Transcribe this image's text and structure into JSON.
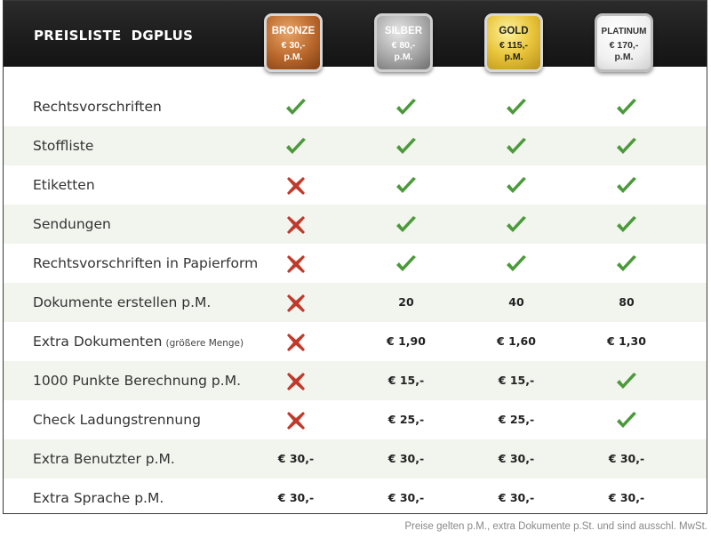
{
  "header": {
    "title": "PREISLISTE  DGPLUS"
  },
  "plans": [
    {
      "name": "BRONZE",
      "price": "€ 30,-\np.M.",
      "color": "#b9672b"
    },
    {
      "name": "SILBER",
      "price": "€ 80,-\np.M.",
      "color": "#a8a8a8"
    },
    {
      "name": "GOLD",
      "price": "€ 115,-\np.M.",
      "color": "#e8c43a"
    },
    {
      "name": "PLATINUM",
      "price": "€ 170,-\np.M.",
      "color": "#f0f0f0"
    }
  ],
  "status_colors": {
    "check": "#4a9a3a",
    "cross": "#c0392b"
  },
  "rows": [
    {
      "label": "Rechtsvorschriften",
      "note": "",
      "values": [
        "check",
        "check",
        "check",
        "check"
      ]
    },
    {
      "label": "Stoffliste",
      "note": "",
      "values": [
        "check",
        "check",
        "check",
        "check"
      ]
    },
    {
      "label": "Etiketten",
      "note": "",
      "values": [
        "cross",
        "check",
        "check",
        "check"
      ]
    },
    {
      "label": "Sendungen",
      "note": "",
      "values": [
        "cross",
        "check",
        "check",
        "check"
      ]
    },
    {
      "label": "Rechtsvorschriften in Papierform",
      "note": "",
      "values": [
        "cross",
        "check",
        "check",
        "check"
      ]
    },
    {
      "label": "Dokumente erstellen p.M.",
      "note": "",
      "values": [
        "cross",
        "20",
        "40",
        "80"
      ]
    },
    {
      "label": "Extra Dokumenten",
      "note": "(größere Menge)",
      "values": [
        "cross",
        "€ 1,90",
        "€ 1,60",
        "€ 1,30"
      ]
    },
    {
      "label": "1000 Punkte Berechnung p.M.",
      "note": "",
      "values": [
        "cross",
        "€ 15,-",
        "€ 15,-",
        "check"
      ]
    },
    {
      "label": "Check Ladungstrennung",
      "note": "",
      "values": [
        "cross",
        "€ 25,-",
        "€ 25,-",
        "check"
      ]
    },
    {
      "label": "Extra Benutzter p.M.",
      "note": "",
      "values": [
        "€ 30,-",
        "€ 30,-",
        "€ 30,-",
        "€ 30,-"
      ]
    },
    {
      "label": "Extra Sprache p.M.",
      "note": "",
      "values": [
        "€ 30,-",
        "€ 30,-",
        "€ 30,-",
        "€ 30,-"
      ]
    }
  ],
  "footnote": "Preise gelten p.M., extra Dokumente p.St. und sind ausschl. MwSt."
}
